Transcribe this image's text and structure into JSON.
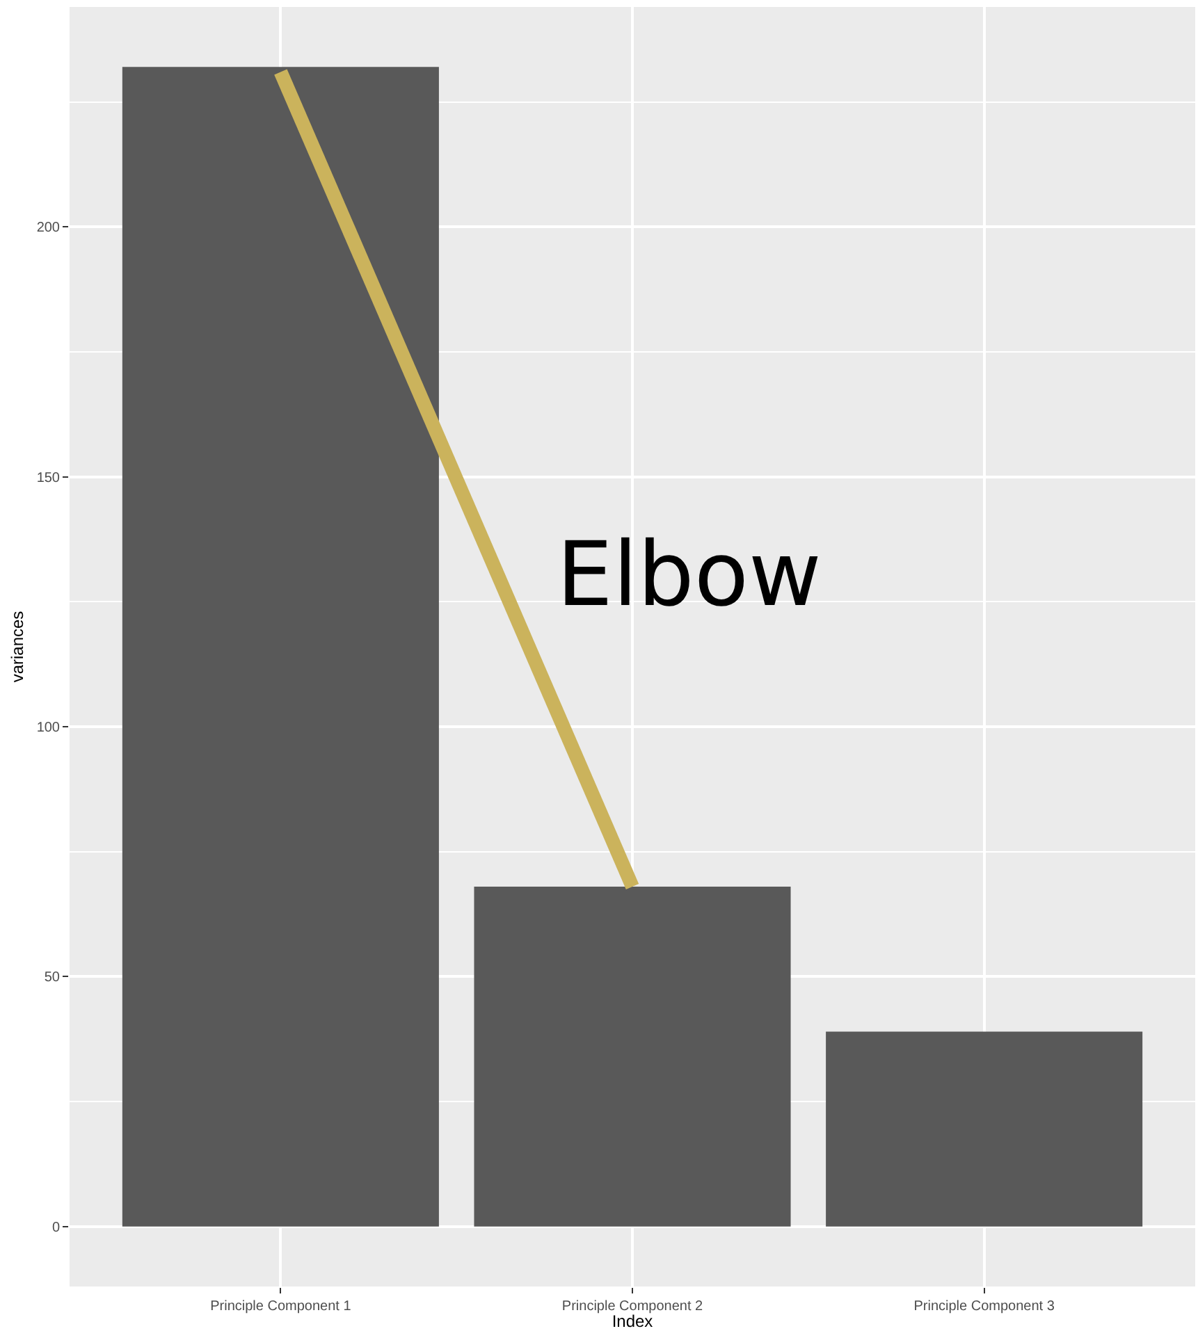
{
  "chart_data": {
    "type": "bar",
    "xlabel": "Index",
    "ylabel": "variances",
    "categories": [
      "Principle Component 1",
      "Principle Component 2",
      "Principle Component 3"
    ],
    "series": [
      {
        "color": "#595959",
        "values": [
          232,
          68,
          39
        ]
      },
      {
        "type": "line",
        "color": "#cbb35c",
        "values": [
          231,
          68,
          null
        ]
      }
    ],
    "ylim": [
      -12,
      244
    ],
    "yticks": [
      0,
      50,
      100,
      150,
      200
    ],
    "grid": true,
    "legend": false,
    "annotations": [
      "Elbow"
    ]
  }
}
